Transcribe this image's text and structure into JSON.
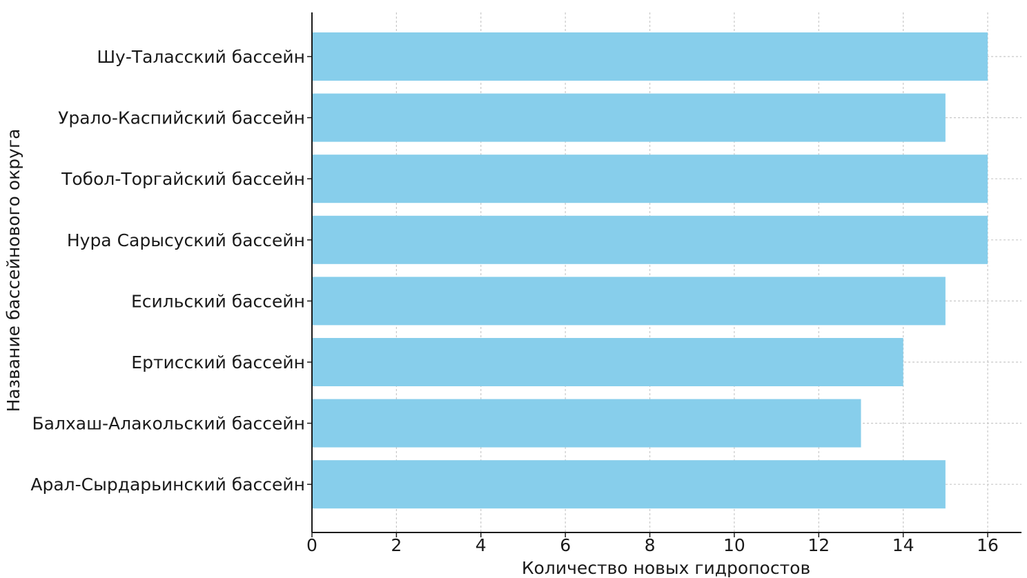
{
  "chart_data": {
    "type": "bar",
    "orientation": "horizontal",
    "title": "",
    "xlabel": "Количество новых гидропостов",
    "ylabel": "Название бассейнового округа",
    "categories": [
      "Шу-Таласский бассейн",
      "Урало-Каспийский бассейн",
      "Тобол-Торгайский бассейн",
      "Нура Сарысуский бассейн",
      "Есильский бассейн",
      "Ертисский бассейн",
      "Балхаш-Алакольский бассейн",
      "Арал-Сырдарьинский бассейн"
    ],
    "values": [
      16,
      15,
      16,
      16,
      15,
      14,
      13,
      15
    ],
    "xlim": [
      0,
      16.8
    ],
    "xticks": [
      "0",
      "2",
      "4",
      "6",
      "8",
      "10",
      "12",
      "14",
      "16"
    ],
    "grid": true,
    "bar_color": "#87ceeb"
  }
}
